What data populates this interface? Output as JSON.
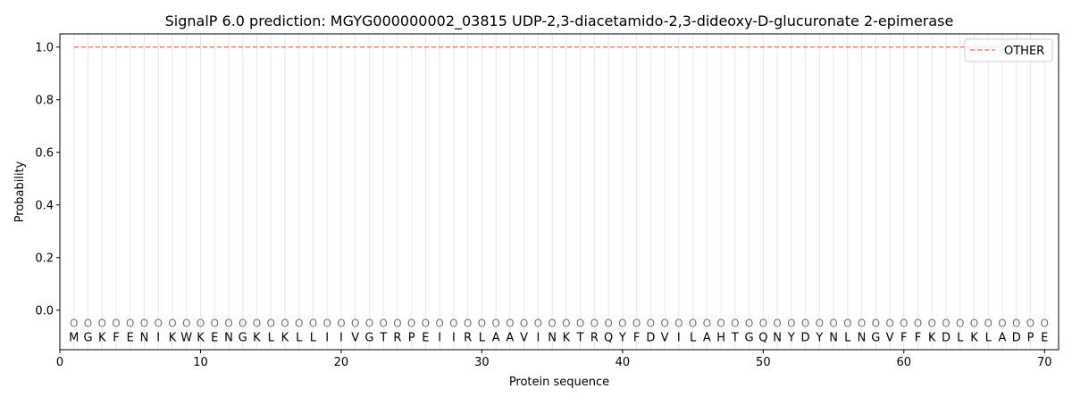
{
  "chart_data": {
    "type": "line",
    "title": "SignalP 6.0 prediction: MGYG000000002_03815 UDP-2,3-diacetamido-2,3-dideoxy-D-glucuronate 2-epimerase",
    "xlabel": "Protein sequence",
    "ylabel": "Probability",
    "xlim": [
      0,
      71
    ],
    "ylim": [
      -0.15,
      1.05
    ],
    "xticks": [
      0,
      10,
      20,
      30,
      40,
      50,
      60,
      70
    ],
    "yticks": [
      0.0,
      0.2,
      0.4,
      0.6,
      0.8,
      1.0
    ],
    "ytick_labels": [
      "0.0",
      "0.2",
      "0.4",
      "0.6",
      "0.8",
      "1.0"
    ],
    "legend_position": "top-right",
    "series": [
      {
        "name": "OTHER",
        "color": "#f08080",
        "style": "dashed",
        "x": [
          1,
          70
        ],
        "y": [
          1.0,
          1.0
        ]
      }
    ],
    "sequence": [
      "M",
      "G",
      "K",
      "F",
      "E",
      "N",
      "I",
      "K",
      "W",
      "K",
      "E",
      "N",
      "G",
      "K",
      "L",
      "K",
      "L",
      "L",
      "I",
      "I",
      "V",
      "G",
      "T",
      "R",
      "P",
      "E",
      "I",
      "I",
      "R",
      "L",
      "A",
      "A",
      "V",
      "I",
      "N",
      "K",
      "T",
      "R",
      "Q",
      "Y",
      "F",
      "D",
      "V",
      "I",
      "L",
      "A",
      "H",
      "T",
      "G",
      "Q",
      "N",
      "Y",
      "D",
      "Y",
      "N",
      "L",
      "N",
      "G",
      "V",
      "F",
      "F",
      "K",
      "D",
      "L",
      "K",
      "L",
      "A",
      "D",
      "P",
      "E"
    ],
    "region_label": "O",
    "grid_color": "#e8e8e8"
  }
}
